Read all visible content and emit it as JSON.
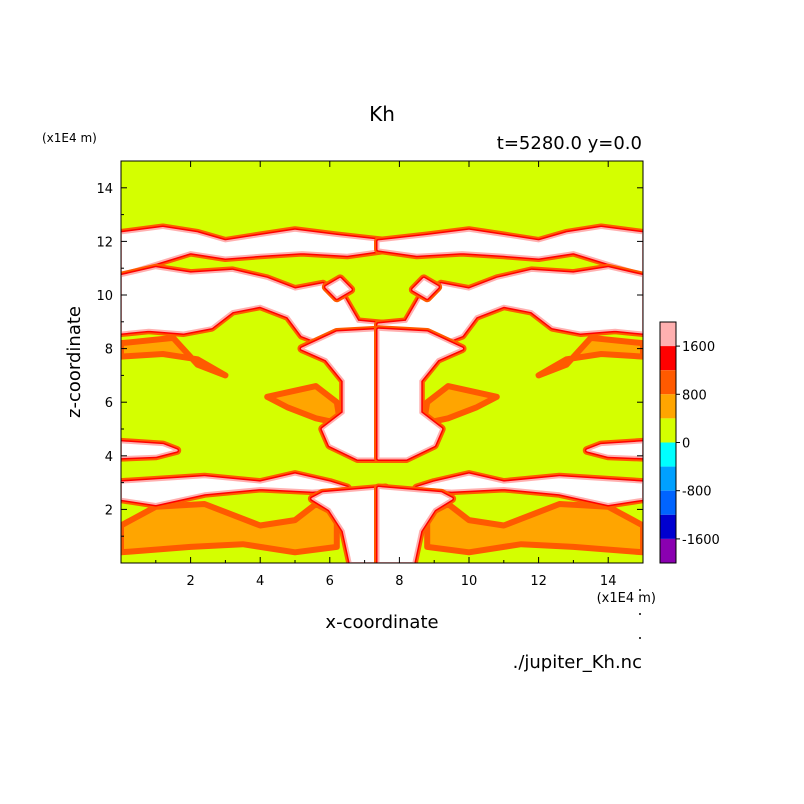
{
  "chart_data": {
    "type": "heatmap",
    "title": "Kh",
    "subtitle": "t=5280.0 y=0.0",
    "xlabel": "x-coordinate",
    "ylabel": "z-coordinate",
    "x_unit": "(x1E4 m)",
    "z_unit": "(x1E4 m)",
    "source": "./jupiter_Kh.nc",
    "xlim": [
      0,
      15
    ],
    "ylim": [
      0,
      15
    ],
    "x_ticks": [
      {
        "value": 2,
        "label": "2"
      },
      {
        "value": 4,
        "label": "4"
      },
      {
        "value": 6,
        "label": "6"
      },
      {
        "value": 8,
        "label": "8"
      },
      {
        "value": 10,
        "label": "10"
      },
      {
        "value": 12,
        "label": "12"
      },
      {
        "value": 14,
        "label": "14"
      }
    ],
    "y_ticks": [
      {
        "value": 2,
        "label": "2"
      },
      {
        "value": 4,
        "label": "4"
      },
      {
        "value": 6,
        "label": "6"
      },
      {
        "value": 8,
        "label": "8"
      },
      {
        "value": 10,
        "label": "10"
      },
      {
        "value": 12,
        "label": "12"
      },
      {
        "value": 14,
        "label": "14"
      }
    ],
    "colorbar": {
      "levels": [
        {
          "from": 1600,
          "to": 2000,
          "color": "#ffb0b0"
        },
        {
          "from": 1200,
          "to": 1600,
          "color": "#ff0000"
        },
        {
          "from": 800,
          "to": 1200,
          "color": "#ff5a00"
        },
        {
          "from": 400,
          "to": 800,
          "color": "#ffa500"
        },
        {
          "from": 0,
          "to": 400,
          "color": "#d4ff00"
        },
        {
          "from": -400,
          "to": 0,
          "color": "#00ffff"
        },
        {
          "from": -800,
          "to": -400,
          "color": "#00a0ff"
        },
        {
          "from": -1200,
          "to": -800,
          "color": "#0064ff"
        },
        {
          "from": -1600,
          "to": -1200,
          "color": "#0000d0"
        },
        {
          "from": -2000,
          "to": -1600,
          "color": "#8a00b0"
        }
      ],
      "labels": [
        {
          "value": 1600,
          "label": "1600"
        },
        {
          "value": 800,
          "label": "800"
        },
        {
          "value": 0,
          "label": "0"
        },
        {
          "value": -800,
          "label": "-800"
        },
        {
          "value": -1600,
          "label": "-1600"
        }
      ]
    },
    "background_level_color": "#d4ff00",
    "high_value_color": "#ffffff",
    "edge_colors": {
      "inner": "#ffb0b0",
      "middle": "#ff0000",
      "outer": "#ff5a00"
    }
  }
}
